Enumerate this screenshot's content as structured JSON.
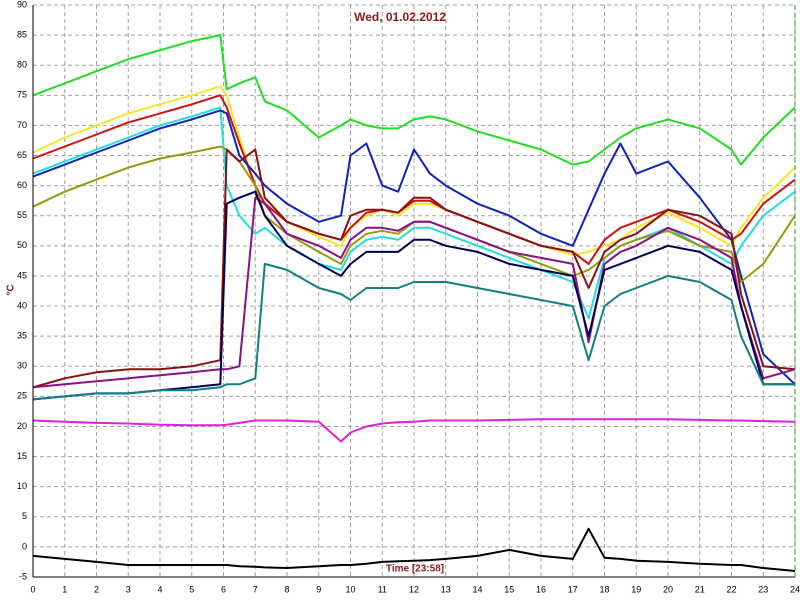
{
  "chart_data": {
    "type": "line",
    "title": "Wed, 01.02.2012",
    "y_label": "°C",
    "x_label": "Time [23:58]",
    "x": [
      0,
      1,
      2,
      3,
      4,
      5,
      5.9,
      6.1,
      6.5,
      7,
      7.3,
      8,
      9,
      9.7,
      10,
      10.5,
      11,
      11.5,
      12,
      12.5,
      13,
      14,
      15,
      16,
      17,
      17.5,
      18,
      18.5,
      19,
      20,
      21,
      22,
      22.3,
      23,
      24
    ],
    "series": [
      {
        "color": "#22dd22",
        "values": [
          75,
          77,
          79,
          81,
          82.5,
          84,
          85,
          76,
          77,
          78,
          74,
          72.5,
          68,
          70,
          71,
          70,
          69.5,
          69.5,
          71,
          71.5,
          71,
          69,
          67.5,
          66,
          63.5,
          64,
          66,
          68,
          69.5,
          71,
          69.5,
          66,
          63.5,
          68,
          73
        ]
      },
      {
        "color": "#f5e62a",
        "values": [
          65.5,
          68,
          70,
          72,
          73.5,
          75,
          76.5,
          75,
          68,
          60,
          57,
          54,
          51.5,
          50,
          53,
          55,
          56,
          55,
          57,
          57,
          56,
          54,
          52,
          50,
          48.5,
          49,
          50,
          51,
          53,
          55.5,
          53,
          50,
          53,
          58,
          63
        ]
      },
      {
        "color": "#cc1111",
        "values": [
          64.5,
          66.5,
          68.5,
          70.5,
          72,
          73.5,
          75,
          73,
          67,
          60,
          57,
          54,
          52,
          51,
          53,
          55.5,
          56,
          55.5,
          57.5,
          57.5,
          56,
          54,
          52,
          50,
          49,
          47,
          51,
          53,
          54,
          56,
          54,
          51,
          52,
          57,
          61
        ]
      },
      {
        "color": "#22dddd",
        "values": [
          62,
          64,
          66,
          68,
          70,
          71.5,
          73,
          60,
          55,
          52,
          53,
          50,
          47,
          46,
          49,
          51,
          51.5,
          51,
          53,
          53,
          52,
          50,
          48,
          46,
          44,
          38,
          48,
          50,
          51,
          53,
          50,
          47,
          50,
          55,
          59
        ]
      },
      {
        "color": "#1122bb",
        "values": [
          61.5,
          63.5,
          65.5,
          67.5,
          69.5,
          71,
          72.5,
          72,
          65,
          62,
          60,
          57,
          54,
          55,
          65,
          67,
          60,
          59,
          66,
          62,
          60,
          57,
          55,
          52,
          50,
          56,
          62,
          67,
          62,
          64,
          58,
          51,
          45,
          32,
          27
        ]
      },
      {
        "color": "#999911",
        "values": [
          56.5,
          59,
          61,
          63,
          64.5,
          65.5,
          66.5,
          66,
          64,
          60,
          55,
          52,
          49,
          47,
          50,
          52,
          52.5,
          52,
          54,
          54,
          53,
          51,
          49,
          47,
          45,
          46,
          48,
          50,
          51,
          52.5,
          50,
          49,
          44,
          47,
          55
        ]
      },
      {
        "color": "#881111",
        "values": [
          26.5,
          28,
          29,
          29.5,
          29.5,
          30,
          31,
          66,
          64,
          66,
          58,
          54,
          52,
          51,
          55,
          56,
          56,
          55.5,
          58,
          58,
          56,
          54,
          52,
          50,
          49,
          43,
          49,
          51,
          52,
          56,
          55,
          52,
          42,
          30,
          29.5
        ]
      },
      {
        "color": "#881188",
        "values": [
          26.5,
          27,
          27.5,
          28,
          28.5,
          29,
          29.5,
          29.5,
          30,
          58,
          57,
          52,
          50,
          48,
          51,
          53,
          53,
          52.5,
          54,
          54,
          53,
          51,
          49,
          48,
          47,
          34,
          47,
          49,
          50,
          53,
          51,
          48,
          40,
          28,
          29.5
        ]
      },
      {
        "color": "#000055",
        "values": [
          24.5,
          25,
          25.5,
          25.5,
          26,
          26.5,
          27,
          57,
          58,
          59,
          55,
          50,
          47,
          45,
          47,
          49,
          49,
          49,
          51,
          51,
          50,
          49,
          47,
          46,
          45,
          35,
          46,
          47,
          48,
          50,
          49,
          46,
          40,
          27,
          27
        ]
      },
      {
        "color": "#118080",
        "values": [
          24.5,
          25,
          25.5,
          25.5,
          26,
          26,
          26.5,
          27,
          27,
          28,
          47,
          46,
          43,
          42,
          41,
          43,
          43,
          43,
          44,
          44,
          44,
          43,
          42,
          41,
          40,
          31,
          40,
          42,
          43,
          45,
          44,
          41,
          35,
          27,
          27
        ]
      },
      {
        "color": "#dd22dd",
        "values": [
          21,
          20.8,
          20.6,
          20.5,
          20.3,
          20.2,
          20.2,
          20.3,
          20.6,
          21,
          21,
          21,
          20.8,
          17.5,
          19,
          20,
          20.5,
          20.7,
          20.8,
          21,
          21,
          21,
          21.1,
          21.2,
          21.2,
          21.2,
          21.2,
          21.2,
          21.2,
          21.2,
          21.1,
          21,
          21,
          20.9,
          20.8
        ]
      },
      {
        "color": "#000000",
        "values": [
          -1.5,
          -2,
          -2.5,
          -3,
          -3,
          -3,
          -3,
          -3,
          -3.2,
          -3.3,
          -3.4,
          -3.5,
          -3.2,
          -3,
          -3,
          -2.8,
          -2.5,
          -2.4,
          -2.3,
          -2.2,
          -2,
          -1.5,
          -0.5,
          -1.5,
          -2,
          3,
          -1.8,
          -2,
          -2.3,
          -2.5,
          -2.8,
          -3,
          -3,
          -3.5,
          -4
        ]
      }
    ],
    "xlim": [
      0,
      24
    ],
    "xticks": [
      0,
      1,
      2,
      3,
      4,
      5,
      6,
      7,
      8,
      9,
      10,
      11,
      12,
      13,
      14,
      15,
      16,
      17,
      18,
      19,
      20,
      21,
      22,
      23,
      24
    ],
    "ylim": [
      -5,
      90
    ],
    "yticks": [
      -5,
      0,
      5,
      10,
      15,
      20,
      25,
      30,
      35,
      40,
      45,
      50,
      55,
      60,
      65,
      70,
      75,
      80,
      85,
      90
    ],
    "grid": true
  }
}
